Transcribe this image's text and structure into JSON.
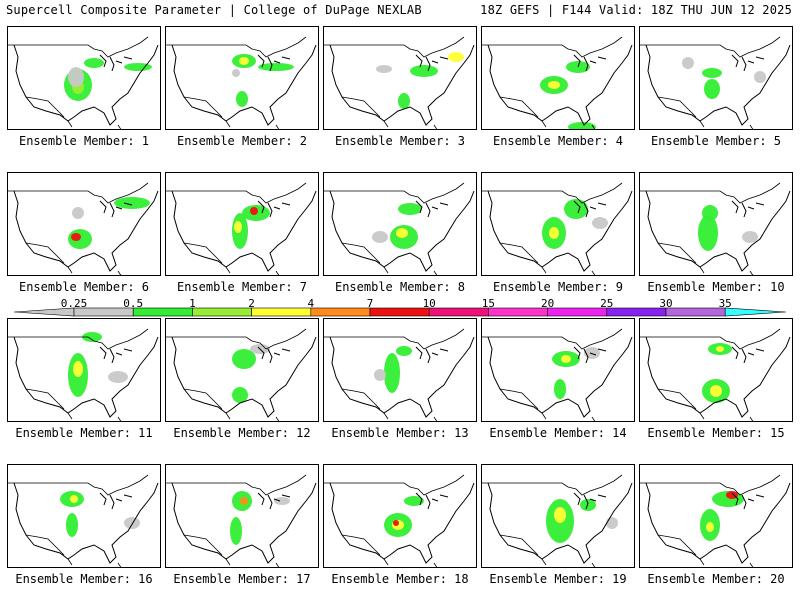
{
  "header": {
    "left": "Supercell Composite Parameter | College of DuPage NEXLAB",
    "right": "18Z GEFS | F144 Valid: 18Z THU JUN 12 2025"
  },
  "label_prefix": "Ensemble Member: ",
  "members": [
    {
      "label": "Ensemble Member: 1"
    },
    {
      "label": "Ensemble Member: 2"
    },
    {
      "label": "Ensemble Member: 3"
    },
    {
      "label": "Ensemble Member: 4"
    },
    {
      "label": "Ensemble Member: 5"
    },
    {
      "label": "Ensemble Member: 6"
    },
    {
      "label": "Ensemble Member: 7"
    },
    {
      "label": "Ensemble Member: 8"
    },
    {
      "label": "Ensemble Member: 9"
    },
    {
      "label": "Ensemble Member: 10"
    },
    {
      "label": "Ensemble Member: 11"
    },
    {
      "label": "Ensemble Member: 12"
    },
    {
      "label": "Ensemble Member: 13"
    },
    {
      "label": "Ensemble Member: 14"
    },
    {
      "label": "Ensemble Member: 15"
    },
    {
      "label": "Ensemble Member: 16"
    },
    {
      "label": "Ensemble Member: 17"
    },
    {
      "label": "Ensemble Member: 18"
    },
    {
      "label": "Ensemble Member: 19"
    },
    {
      "label": "Ensemble Member: 20"
    }
  ],
  "colorbar": {
    "ticks": [
      "0.25",
      "0.5",
      "1",
      "2",
      "4",
      "7",
      "10",
      "15",
      "20",
      "25",
      "30",
      "35"
    ],
    "colors": [
      "#c8c8c8",
      "#33ee33",
      "#99ee33",
      "#ffff33",
      "#ff8c1a",
      "#ee1111",
      "#ee1177",
      "#ff33cc",
      "#ee22ee",
      "#8a22ee",
      "#b366dd",
      "#33ffff"
    ]
  }
}
